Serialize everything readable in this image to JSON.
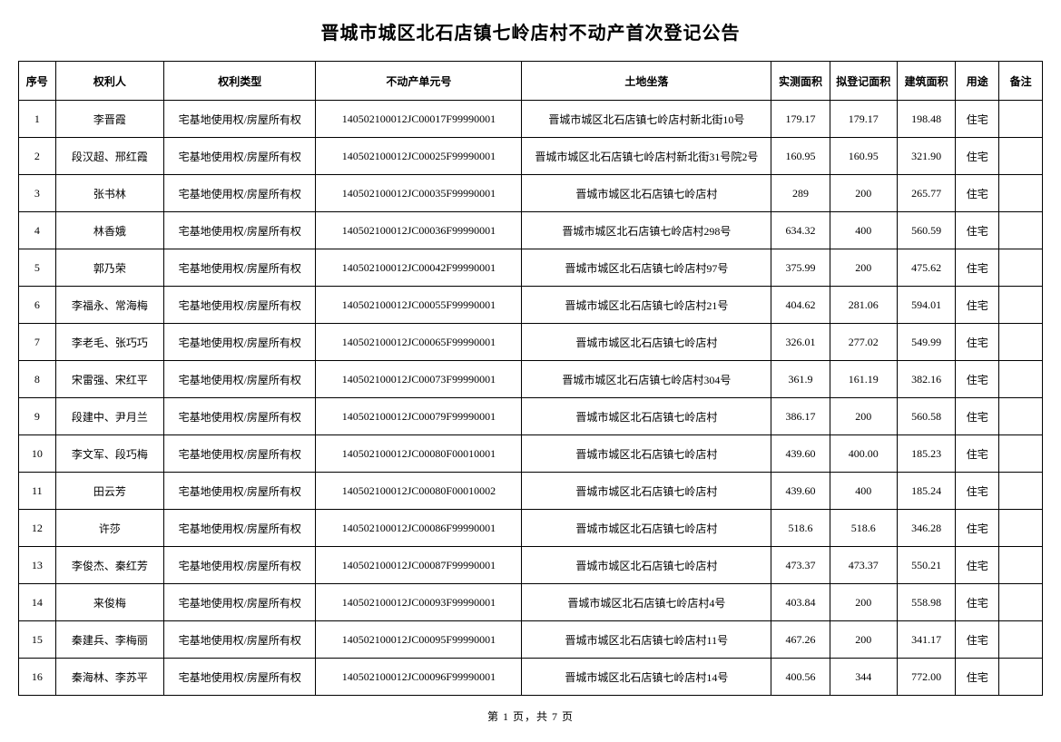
{
  "title": "晋城市城区北石店镇七岭店村不动产首次登记公告",
  "columns": [
    {
      "key": "seq",
      "label": "序号",
      "class": "col-seq"
    },
    {
      "key": "owner",
      "label": "权利人",
      "class": "col-owner"
    },
    {
      "key": "type",
      "label": "权利类型",
      "class": "col-type"
    },
    {
      "key": "unit",
      "label": "不动产单元号",
      "class": "col-unit"
    },
    {
      "key": "loc",
      "label": "土地坐落",
      "class": "col-loc"
    },
    {
      "key": "area1",
      "label": "实测面积",
      "class": "col-area1"
    },
    {
      "key": "area2",
      "label": "拟登记面积",
      "class": "col-area2"
    },
    {
      "key": "area3",
      "label": "建筑面积",
      "class": "col-area3"
    },
    {
      "key": "use",
      "label": "用途",
      "class": "col-use"
    },
    {
      "key": "note",
      "label": "备注",
      "class": "col-note"
    }
  ],
  "rows": [
    {
      "seq": "1",
      "owner": "李晋霞",
      "type": "宅基地使用权/房屋所有权",
      "unit": "140502100012JC00017F99990001",
      "loc": "晋城市城区北石店镇七岭店村新北街10号",
      "area1": "179.17",
      "area2": "179.17",
      "area3": "198.48",
      "use": "住宅",
      "note": ""
    },
    {
      "seq": "2",
      "owner": "段汉超、邢红霞",
      "type": "宅基地使用权/房屋所有权",
      "unit": "140502100012JC00025F99990001",
      "loc": "晋城市城区北石店镇七岭店村新北街31号院2号",
      "area1": "160.95",
      "area2": "160.95",
      "area3": "321.90",
      "use": "住宅",
      "note": ""
    },
    {
      "seq": "3",
      "owner": "张书林",
      "type": "宅基地使用权/房屋所有权",
      "unit": "140502100012JC00035F99990001",
      "loc": "晋城市城区北石店镇七岭店村",
      "area1": "289",
      "area2": "200",
      "area3": "265.77",
      "use": "住宅",
      "note": ""
    },
    {
      "seq": "4",
      "owner": "林香娥",
      "type": "宅基地使用权/房屋所有权",
      "unit": "140502100012JC00036F99990001",
      "loc": "晋城市城区北石店镇七岭店村298号",
      "area1": "634.32",
      "area2": "400",
      "area3": "560.59",
      "use": "住宅",
      "note": ""
    },
    {
      "seq": "5",
      "owner": "郭乃荣",
      "type": "宅基地使用权/房屋所有权",
      "unit": "140502100012JC00042F99990001",
      "loc": "晋城市城区北石店镇七岭店村97号",
      "area1": "375.99",
      "area2": "200",
      "area3": "475.62",
      "use": "住宅",
      "note": ""
    },
    {
      "seq": "6",
      "owner": "李福永、常海梅",
      "type": "宅基地使用权/房屋所有权",
      "unit": "140502100012JC00055F99990001",
      "loc": "晋城市城区北石店镇七岭店村21号",
      "area1": "404.62",
      "area2": "281.06",
      "area3": "594.01",
      "use": "住宅",
      "note": ""
    },
    {
      "seq": "7",
      "owner": "李老毛、张巧巧",
      "type": "宅基地使用权/房屋所有权",
      "unit": "140502100012JC00065F99990001",
      "loc": "晋城市城区北石店镇七岭店村",
      "area1": "326.01",
      "area2": "277.02",
      "area3": "549.99",
      "use": "住宅",
      "note": ""
    },
    {
      "seq": "8",
      "owner": "宋雷强、宋红平",
      "type": "宅基地使用权/房屋所有权",
      "unit": "140502100012JC00073F99990001",
      "loc": "晋城市城区北石店镇七岭店村304号",
      "area1": "361.9",
      "area2": "161.19",
      "area3": "382.16",
      "use": "住宅",
      "note": ""
    },
    {
      "seq": "9",
      "owner": "段建中、尹月兰",
      "type": "宅基地使用权/房屋所有权",
      "unit": "140502100012JC00079F99990001",
      "loc": "晋城市城区北石店镇七岭店村",
      "area1": "386.17",
      "area2": "200",
      "area3": "560.58",
      "use": "住宅",
      "note": ""
    },
    {
      "seq": "10",
      "owner": "李文军、段巧梅",
      "type": "宅基地使用权/房屋所有权",
      "unit": "140502100012JC00080F00010001",
      "loc": "晋城市城区北石店镇七岭店村",
      "area1": "439.60",
      "area2": "400.00",
      "area3": "185.23",
      "use": "住宅",
      "note": ""
    },
    {
      "seq": "11",
      "owner": "田云芳",
      "type": "宅基地使用权/房屋所有权",
      "unit": "140502100012JC00080F00010002",
      "loc": "晋城市城区北石店镇七岭店村",
      "area1": "439.60",
      "area2": "400",
      "area3": "185.24",
      "use": "住宅",
      "note": ""
    },
    {
      "seq": "12",
      "owner": "许莎",
      "type": "宅基地使用权/房屋所有权",
      "unit": "140502100012JC00086F99990001",
      "loc": "晋城市城区北石店镇七岭店村",
      "area1": "518.6",
      "area2": "518.6",
      "area3": "346.28",
      "use": "住宅",
      "note": ""
    },
    {
      "seq": "13",
      "owner": "李俊杰、秦红芳",
      "type": "宅基地使用权/房屋所有权",
      "unit": "140502100012JC00087F99990001",
      "loc": "晋城市城区北石店镇七岭店村",
      "area1": "473.37",
      "area2": "473.37",
      "area3": "550.21",
      "use": "住宅",
      "note": ""
    },
    {
      "seq": "14",
      "owner": "来俊梅",
      "type": "宅基地使用权/房屋所有权",
      "unit": "140502100012JC00093F99990001",
      "loc": "晋城市城区北石店镇七岭店村4号",
      "area1": "403.84",
      "area2": "200",
      "area3": "558.98",
      "use": "住宅",
      "note": ""
    },
    {
      "seq": "15",
      "owner": "秦建兵、李梅丽",
      "type": "宅基地使用权/房屋所有权",
      "unit": "140502100012JC00095F99990001",
      "loc": "晋城市城区北石店镇七岭店村11号",
      "area1": "467.26",
      "area2": "200",
      "area3": "341.17",
      "use": "住宅",
      "note": ""
    },
    {
      "seq": "16",
      "owner": "秦海林、李苏平",
      "type": "宅基地使用权/房屋所有权",
      "unit": "140502100012JC00096F99990001",
      "loc": "晋城市城区北石店镇七岭店村14号",
      "area1": "400.56",
      "area2": "344",
      "area3": "772.00",
      "use": "住宅",
      "note": ""
    }
  ],
  "pager": "第 1 页，共 7 页"
}
